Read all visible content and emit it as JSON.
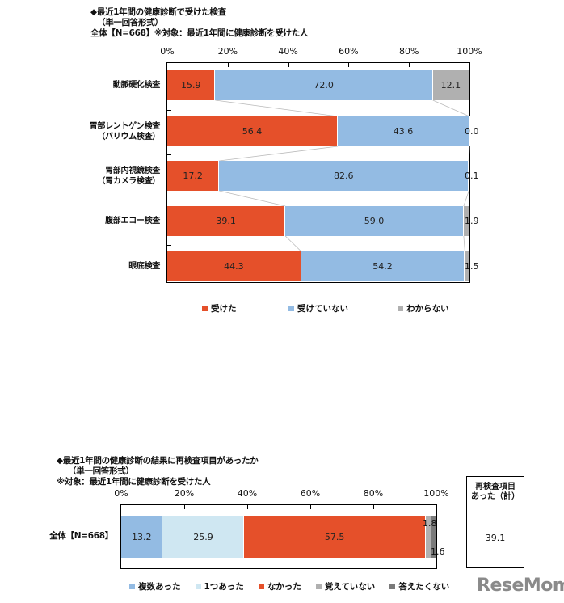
{
  "colors": {
    "received": "#e5502a",
    "not_received": "#93bbe3",
    "unknown": "#b0b0b0",
    "multiple": "#93bbe3",
    "one": "#cfe7f2",
    "none": "#e5502a",
    "not_remember": "#b0b0b0",
    "no_answer": "#7a7a7a"
  },
  "chart_data": [
    {
      "type": "bar",
      "orientation": "horizontal-stacked-100",
      "title": "◆最近1年間の健康診断で受けた検査",
      "subtitle": "（単一回答形式）",
      "note": "全体【N=668】※対象：最近1年間に健康診断を受けた人",
      "xlabel": "",
      "ylabel": "",
      "xlim": [
        0,
        100
      ],
      "x_ticks": [
        "0%",
        "20%",
        "40%",
        "60%",
        "80%",
        "100%"
      ],
      "categories": [
        "動脈硬化検査",
        "胃部レントゲン検査\n（バリウム検査）",
        "胃部内視鏡検査\n（胃カメラ検査）",
        "腹部エコー検査",
        "眼底検査"
      ],
      "series": [
        {
          "name": "受けた",
          "values": [
            15.9,
            56.4,
            17.2,
            39.1,
            44.3
          ]
        },
        {
          "name": "受けていない",
          "values": [
            72.0,
            43.6,
            82.6,
            59.0,
            54.2
          ]
        },
        {
          "name": "わからない",
          "values": [
            12.1,
            0.0,
            0.1,
            1.9,
            1.5
          ]
        }
      ],
      "legend_position": "bottom",
      "grid": false
    },
    {
      "type": "bar",
      "orientation": "horizontal-stacked-100",
      "title": "◆最近1年間の健康診断の結果に再検査項目があったか",
      "subtitle": "（単一回答形式）",
      "note": "※対象：最近1年間に健康診断を受けた人",
      "xlim": [
        0,
        100
      ],
      "x_ticks": [
        "0%",
        "20%",
        "40%",
        "60%",
        "80%",
        "100%"
      ],
      "categories": [
        "全体【N=668】"
      ],
      "series": [
        {
          "name": "複数あった",
          "values": [
            13.2
          ]
        },
        {
          "name": "1つあった",
          "values": [
            25.9
          ]
        },
        {
          "name": "なかった",
          "values": [
            57.5
          ]
        },
        {
          "name": "覚えていない",
          "values": [
            1.8
          ]
        },
        {
          "name": "答えたくない",
          "values": [
            1.6
          ]
        }
      ],
      "summary": {
        "label": "再検査項目\nあった（計）",
        "value": "39.1"
      },
      "legend_position": "bottom",
      "grid": false
    }
  ],
  "top": {
    "title": "◆最近1年間の健康診断で受けた検査",
    "subtitle": "（単一回答形式）",
    "note": "全体【N=668】※対象：最近1年間に健康診断を受けた人",
    "ticks": [
      "0%",
      "20%",
      "40%",
      "60%",
      "80%",
      "100%"
    ],
    "rows": [
      {
        "label1": "動脈硬化検査",
        "label2": "",
        "v": [
          "15.9",
          "72.0",
          "12.1"
        ]
      },
      {
        "label1": "胃部レントゲン検査",
        "label2": "（バリウム検査）",
        "v": [
          "56.4",
          "43.6",
          "0.0"
        ]
      },
      {
        "label1": "胃部内視鏡検査",
        "label2": "（胃カメラ検査）",
        "v": [
          "17.2",
          "82.6",
          "0.1"
        ]
      },
      {
        "label1": "腹部エコー検査",
        "label2": "",
        "v": [
          "39.1",
          "59.0",
          "1.9"
        ]
      },
      {
        "label1": "眼底検査",
        "label2": "",
        "v": [
          "44.3",
          "54.2",
          "1.5"
        ]
      }
    ],
    "legend": [
      "受けた",
      "受けていない",
      "わからない"
    ]
  },
  "bottom": {
    "title": "◆最近1年間の健康診断の結果に再検査項目があったか",
    "subtitle": "（単一回答形式）",
    "note": "※対象：最近1年間に健康診断を受けた人",
    "ticks": [
      "0%",
      "20%",
      "40%",
      "60%",
      "80%",
      "100%"
    ],
    "row_label": "全体【N=668】",
    "v": [
      "13.2",
      "25.9",
      "57.5",
      "1.8",
      "1.6"
    ],
    "legend": [
      "複数あった",
      "1つあった",
      "なかった",
      "覚えていない",
      "答えたくない"
    ],
    "summary_header1": "再検査項目",
    "summary_header2": "あった（計）",
    "summary_value": "39.1"
  },
  "watermark": "ReseMom"
}
